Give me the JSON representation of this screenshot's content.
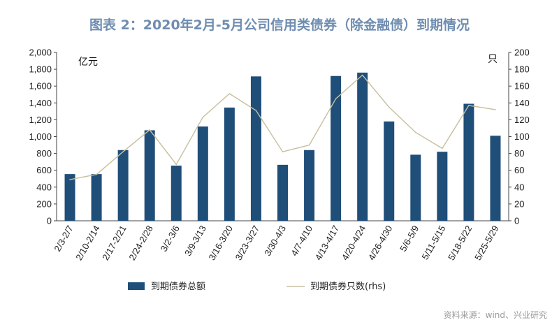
{
  "chart_data": {
    "type": "bar",
    "title": "图表 2：2020年2月-5月公司信用类债券（除金融债）到期情况",
    "left_unit": "亿元",
    "right_unit": "只",
    "categories": [
      "2/3-2/7",
      "2/10-2/14",
      "2/17-2/21",
      "2/24-2/28",
      "3/2-3/6",
      "3/9-3/13",
      "3/16-3/20",
      "3/23-3/27",
      "3/30-4/3",
      "4/7-4/10",
      "4/13-4/17",
      "4/20-4/24",
      "4/26-4/30",
      "5/6-5/9",
      "5/11-5/15",
      "5/18-5/22",
      "5/25-5/29"
    ],
    "series": [
      {
        "name": "到期债券总额",
        "type": "bar",
        "axis": "left",
        "color": "#1f4e79",
        "values": [
          555,
          555,
          840,
          1075,
          655,
          1120,
          1345,
          1715,
          665,
          840,
          1720,
          1760,
          1180,
          785,
          820,
          1390,
          1010
        ]
      },
      {
        "name": "到期债券只数(rhs)",
        "type": "line",
        "axis": "right",
        "color": "#c8bf9e",
        "values": [
          49,
          55,
          82,
          108,
          67,
          123,
          151,
          131,
          82,
          90,
          145,
          173,
          135,
          105,
          86,
          137,
          132
        ]
      }
    ],
    "ylim_left": [
      0,
      2000
    ],
    "ylim_right": [
      0,
      200
    ],
    "yticks_left": [
      "0",
      "200",
      "400",
      "600",
      "800",
      "1,000",
      "1,200",
      "1,400",
      "1,600",
      "1,800",
      "2,000"
    ],
    "yticks_right": [
      "0",
      "20",
      "40",
      "60",
      "80",
      "100",
      "120",
      "140",
      "160",
      "180",
      "200"
    ],
    "grid": false,
    "legend_position": "bottom"
  },
  "source": "资料来源：wind、兴业研究"
}
